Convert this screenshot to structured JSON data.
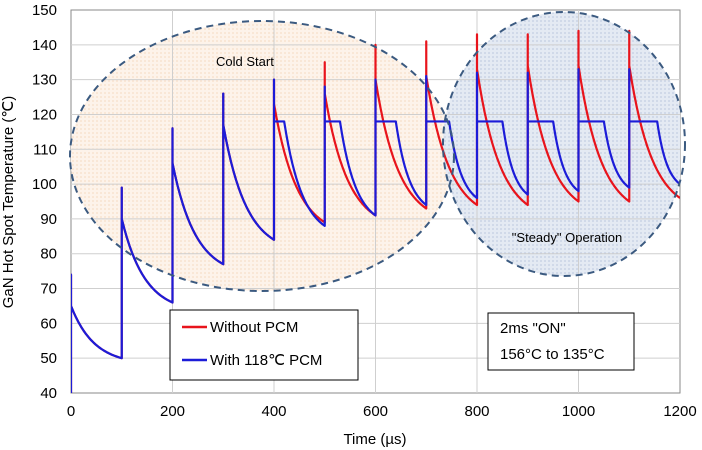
{
  "chart_data": {
    "type": "line",
    "xlabel": "Time (µs)",
    "ylabel": "GaN Hot Spot Temperature (℃)",
    "xlim": [
      0,
      1200
    ],
    "ylim": [
      40,
      150
    ],
    "xticks": [
      "0",
      "200",
      "400",
      "600",
      "800",
      "1000",
      "1200"
    ],
    "yticks": [
      "40",
      "50",
      "60",
      "70",
      "80",
      "90",
      "100",
      "110",
      "120",
      "130",
      "140",
      "150"
    ],
    "grid": true,
    "legend_placement": "bottom-left",
    "series": [
      {
        "name": "Without PCM",
        "color": "#e8141c",
        "x": [
          0,
          0,
          0,
          100,
          100,
          100,
          200,
          200,
          200,
          300,
          300,
          300,
          400,
          400,
          400,
          500,
          500,
          500,
          600,
          600,
          600,
          700,
          700,
          700,
          800,
          800,
          800,
          900,
          900,
          900,
          1000,
          1000,
          1000,
          1100,
          1100,
          1100,
          1200
        ],
        "y": [
          40,
          74,
          65,
          50,
          99,
          90,
          66,
          116,
          106,
          77,
          126,
          117,
          84,
          130,
          123,
          89,
          135,
          126,
          91,
          140,
          130,
          93,
          141,
          131,
          94,
          143,
          133,
          94,
          143,
          134,
          95,
          144,
          134,
          95,
          144,
          134,
          96
        ]
      },
      {
        "name": "With 118℃ PCM",
        "color": "#1c1cd8",
        "x": [
          0,
          0,
          0,
          100,
          100,
          100,
          200,
          200,
          200,
          300,
          300,
          300,
          400,
          400,
          400,
          405,
          420,
          500,
          500,
          500,
          505,
          530,
          600,
          600,
          600,
          605,
          640,
          700,
          700,
          700,
          705,
          745,
          800,
          800,
          800,
          805,
          850,
          900,
          900,
          900,
          905,
          950,
          1000,
          1000,
          1000,
          1005,
          1050,
          1100,
          1100,
          1100,
          1105,
          1155,
          1200
        ],
        "y": [
          40,
          74,
          65,
          50,
          99,
          90,
          66,
          116,
          106,
          77,
          126,
          117,
          84,
          130,
          118,
          118,
          118,
          88,
          128,
          118,
          118,
          118,
          91,
          130,
          118,
          118,
          118,
          94,
          131,
          118,
          118,
          118,
          96,
          132,
          118,
          118,
          118,
          97,
          132,
          118,
          118,
          118,
          98,
          133,
          118,
          118,
          118,
          99,
          133,
          118,
          118,
          118,
          100
        ]
      }
    ],
    "annotations": [
      {
        "text": "Cold Start",
        "region": "left ellipse"
      },
      {
        "text": "\"Steady\" Operation",
        "region": "right ellipse"
      }
    ],
    "info_box": {
      "line1": "2ms \"ON\"",
      "line2": "156°C to 135°C"
    },
    "region_colors": {
      "cold_start_fill": "#fdf1e6",
      "steady_fill": "#dfe6f1",
      "ellipse_stroke": "#3b5a80"
    }
  }
}
